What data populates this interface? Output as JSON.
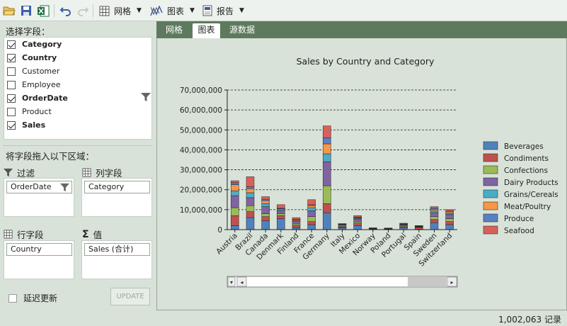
{
  "toolbar": {
    "grid_label": "网格",
    "chart_label": "图表",
    "report_label": "报告"
  },
  "left": {
    "fields_title": "选择字段：",
    "fields": [
      {
        "label": "Category",
        "checked": true
      },
      {
        "label": "Country",
        "checked": true
      },
      {
        "label": "Customer",
        "checked": false
      },
      {
        "label": "Employee",
        "checked": false
      },
      {
        "label": "OrderDate",
        "checked": true
      },
      {
        "label": "Product",
        "checked": false
      },
      {
        "label": "Sales",
        "checked": true
      }
    ],
    "drag_title": "将字段拖入以下区域：",
    "filter_title": "过滤",
    "filter_chip": "OrderDate",
    "columns_title": "列字段",
    "columns_chip": "Category",
    "rows_title": "行字段",
    "rows_chip": "Country",
    "values_title": "值",
    "values_chip": "Sales (合计)",
    "defer_label": "延迟更新",
    "update_label": "UPDATE"
  },
  "tabs": [
    "网格",
    "图表",
    "源数据"
  ],
  "status": {
    "records": "1,002,063 记录"
  },
  "colors": {
    "Beverages": "#4f81bd",
    "Condiments": "#c0504d",
    "Confections": "#9bbb59",
    "Dairy Products": "#8064a2",
    "Grains/Cereals": "#4bacc6",
    "Meat/Poultry": "#f79646",
    "Produce": "#5b7fc4",
    "Seafood": "#d9605a"
  },
  "chart_data": {
    "type": "bar",
    "stacked": true,
    "title": "Sales by Country and Category",
    "ylim": [
      0,
      70000000
    ],
    "yticks": [
      "0",
      "10,000,000",
      "20,000,000",
      "30,000,000",
      "40,000,000",
      "50,000,000",
      "60,000,000",
      "70,000,000"
    ],
    "grid": "dashed horizontal",
    "legend": "right",
    "categories": [
      "Austria",
      "Brazil",
      "Canada",
      "Denmark",
      "Finland",
      "France",
      "Germany",
      "Italy",
      "Mexico",
      "Norway",
      "Poland",
      "Portugal",
      "Spain",
      "Sweden",
      "Switzerland"
    ],
    "series": [
      {
        "name": "Beverages",
        "values": [
          2000000,
          6000000,
          4500000,
          5500000,
          1000000,
          2500000,
          8500000,
          800000,
          2000000,
          200000,
          200000,
          800000,
          200000,
          3500000,
          2500000
        ]
      },
      {
        "name": "Condiments",
        "values": [
          5000000,
          3000000,
          2000000,
          1500000,
          1000000,
          1500000,
          4500000,
          500000,
          1000000,
          100000,
          100000,
          600000,
          900000,
          1500000,
          1500000
        ]
      },
      {
        "name": "Confections",
        "values": [
          4000000,
          3000000,
          1500000,
          1000000,
          800000,
          2500000,
          9000000,
          400000,
          800000,
          100000,
          100000,
          400000,
          200000,
          1500000,
          1500000
        ]
      },
      {
        "name": "Dairy Products",
        "values": [
          6000000,
          4000000,
          3500000,
          1500000,
          1200000,
          3000000,
          12000000,
          700000,
          1500000,
          100000,
          100000,
          600000,
          200000,
          2000000,
          2000000
        ]
      },
      {
        "name": "Grains/Cereals",
        "values": [
          2500000,
          2500000,
          1500000,
          500000,
          400000,
          1500000,
          4000000,
          200000,
          400000,
          100000,
          50000,
          200000,
          100000,
          1000000,
          500000
        ]
      },
      {
        "name": "Meat/Poultry",
        "values": [
          3000000,
          2000000,
          1500000,
          400000,
          500000,
          1000000,
          5000000,
          100000,
          300000,
          100000,
          50000,
          200000,
          200000,
          700000,
          800000
        ]
      },
      {
        "name": "Produce",
        "values": [
          1000000,
          1000000,
          700000,
          300000,
          300000,
          500000,
          3000000,
          100000,
          200000,
          50000,
          50000,
          100000,
          100000,
          500000,
          500000
        ]
      },
      {
        "name": "Seafood",
        "values": [
          1000000,
          5000000,
          1300000,
          1800000,
          800000,
          2500000,
          6000000,
          200000,
          800000,
          150000,
          150000,
          300000,
          100000,
          800000,
          700000
        ]
      }
    ]
  }
}
